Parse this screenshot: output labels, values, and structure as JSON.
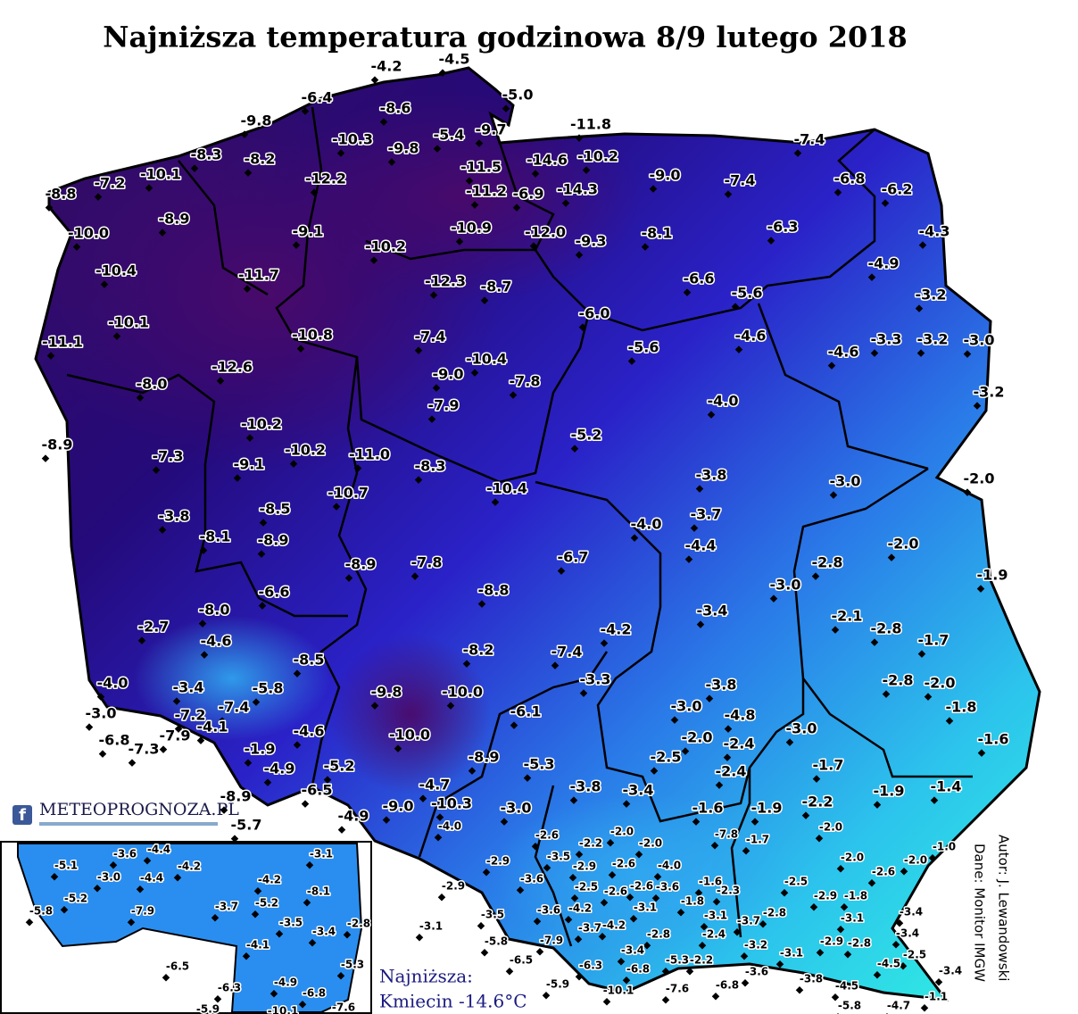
{
  "title": "Najniższa temperatura godzinowa 8/9 lutego 2018",
  "stations": [
    "-4.2",
    "-4.5",
    "-5.0",
    "-6.4",
    "-8.6",
    "-9.7",
    "-9.8",
    "-11.8",
    "-7.4",
    "-10.3",
    "-9.8",
    "-5.4",
    "-14.6",
    "-10.2",
    "-8.3",
    "-8.2",
    "-10.1",
    "-11.5",
    "-9.0",
    "-7.4",
    "-6.8",
    "-6.2",
    "-8.8",
    "-7.2",
    "-12.2",
    "-11.2",
    "-6.9",
    "-14.3",
    "-8.9",
    "-10.0",
    "-9.1",
    "-10.9",
    "-12.0",
    "-9.3",
    "-8.1",
    "-6.3",
    "-4.3",
    "-10.2",
    "-10.4",
    "-11.7",
    "-12.3",
    "-8.7",
    "-6.6",
    "-4.9",
    "-5.6",
    "-3.2",
    "-10.1",
    "-6.0",
    "-10.8",
    "-7.4",
    "-4.6",
    "-11.1",
    "-5.6",
    "-4.6",
    "-3.3",
    "-3.2",
    "-3.0",
    "-12.6",
    "-10.4",
    "-9.0",
    "-7.8",
    "-8.0",
    "-3.2",
    "-4.0",
    "-7.9",
    "-10.2",
    "-5.2",
    "-8.9",
    "-10.2",
    "-11.0",
    "-7.3",
    "-9.1",
    "-8.3",
    "-3.8",
    "-3.0",
    "-2.0",
    "-10.4",
    "-10.7",
    "-8.5",
    "-3.8",
    "-3.7",
    "-4.0",
    "-8.1",
    "-8.9",
    "-4.4",
    "-2.0",
    "-8.9",
    "-7.8",
    "-6.7",
    "-2.8",
    "-3.0",
    "-1.9",
    "-8.8",
    "-6.6",
    "-8.0",
    "-3.4",
    "-2.1",
    "-2.7",
    "-4.2",
    "-2.8",
    "-4.6",
    "-1.7",
    "-8.2",
    "-7.4",
    "-8.5",
    "-3.3",
    "-2.8",
    "-2.0",
    "-5.8",
    "-3.4",
    "-4.0",
    "-9.8",
    "-10.0",
    "-1.8",
    "-3.0",
    "-6.1",
    "-7.2",
    "-7.4",
    "-4.1",
    "-3.8",
    "-3.0",
    "-4.8",
    "-6.8",
    "-7.3",
    "-7.9",
    "-4.6",
    "-10.0",
    "-1.6",
    "-3.0",
    "-2.0",
    "-2.4",
    "-1.9",
    "-2.5",
    "-8.9",
    "-5.3",
    "-5.2",
    "-4.9",
    "-1.7",
    "-2.4",
    "-4.7",
    "-3.8",
    "-3.4",
    "-6.5",
    "-1.9",
    "-1.4",
    "-8.9",
    "-2.2",
    "-1.6",
    "-1.9",
    "-9.0",
    "-10.3",
    "-4.9",
    "-3.0",
    "-5.7",
    "-4.0",
    "-2.0",
    "-2.0",
    "-2.6",
    "-7.8",
    "-1.7",
    "-2.2",
    "-2.0",
    "-1.0",
    "-3.5",
    "-2.9",
    "-2.6",
    "-4.0",
    "-2.0",
    "-2.0",
    "-2.9",
    "-2.6",
    "-3.6",
    "-2.5",
    "-2.6",
    "-2.6",
    "-3.6",
    "-1.6",
    "-2.5",
    "-2.9",
    "-2.3",
    "-2.9",
    "-1.8",
    "-1.8",
    "-3.4",
    "-3.5",
    "-3.6",
    "-4.2",
    "-3.1",
    "-3.1",
    "-2.8",
    "-3.1",
    "-3.7",
    "-4.2",
    "-3.7",
    "-3.1",
    "-2.8",
    "-2.4",
    "-3.4",
    "-7.9",
    "-5.8",
    "-3.4",
    "-2.9",
    "-2.8",
    "-3.2",
    "-5.3",
    "-2.2",
    "-3.1",
    "-2.5",
    "-4.5",
    "-6.5",
    "-6.3",
    "-6.8",
    "-3.6",
    "-3.4",
    "-5.9",
    "-3.8",
    "-6.8",
    "-7.6",
    "-4.5",
    "-10.1",
    "-1.1",
    "-5.8",
    "-4.7"
  ],
  "inset_stations": [
    "-3.6",
    "-4.4",
    "-3.1",
    "-5.1",
    "-3.0",
    "-4.4",
    "-4.2",
    "-4.2",
    "-8.1",
    "-5.2",
    "-7.9",
    "-3.7",
    "-5.2",
    "-3.5",
    "-2.8",
    "-3.4",
    "-5.8",
    "-4.1",
    "-6.5",
    "-5.3",
    "-4.9",
    "-6.3",
    "-6.8",
    "-5.9",
    "-10.1",
    "-7.6"
  ],
  "logo": "METEOPROGNOZA.PL",
  "summary": {
    "label": "Najniższa:",
    "value": "Kmiecin -14.6°C"
  },
  "credits": {
    "author": "Autor: J. Lewandowski",
    "source": "Dane: Monitor IMGW"
  }
}
